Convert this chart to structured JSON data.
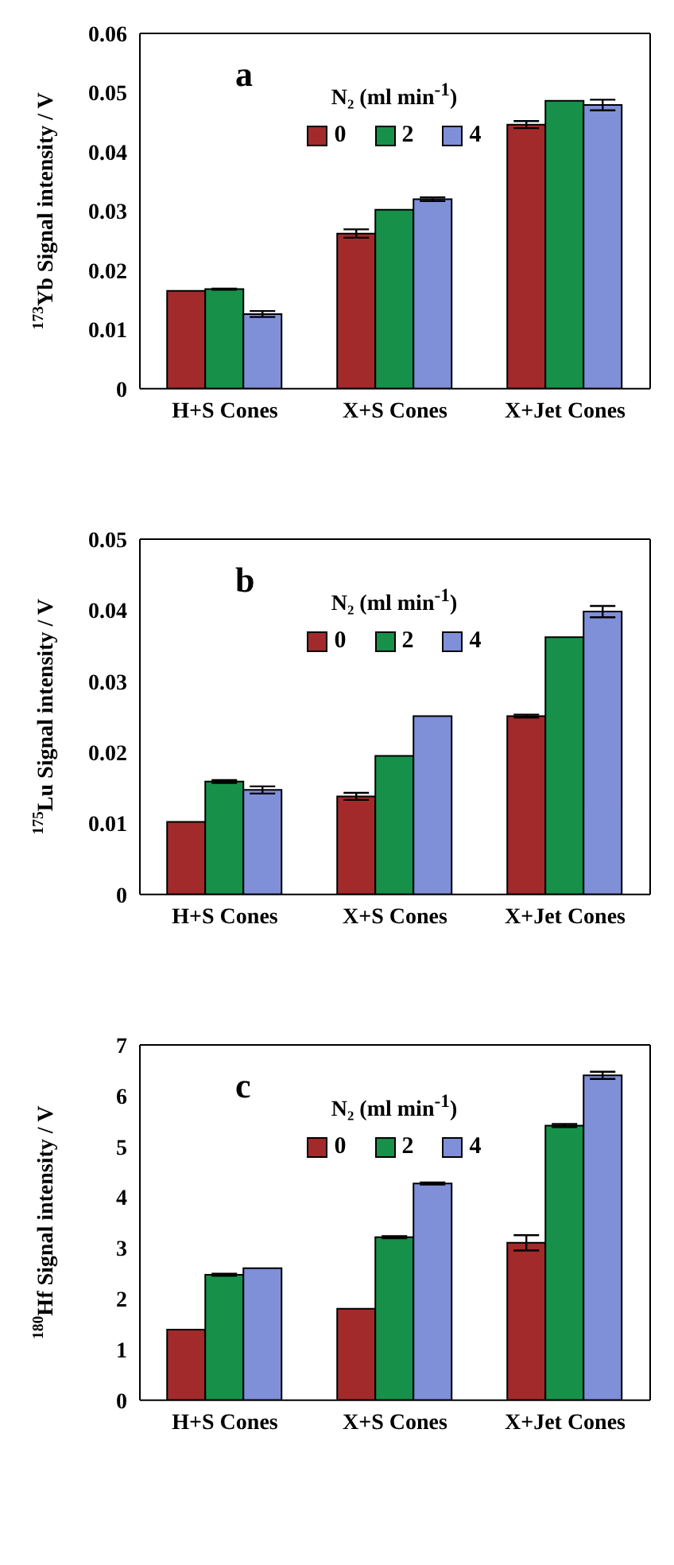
{
  "chart_data": [
    {
      "type": "bar",
      "title": "a",
      "ylabel": "$^{173}$Yb Signal intensity / V",
      "legend_title": "N₂ (ml min$^{-1}$)",
      "legend": "top",
      "categories": [
        "H+S Cones",
        "X+S Cones",
        "X+Jet Cones"
      ],
      "ylim": [
        0,
        0.06
      ],
      "yticks": [
        0,
        0.01,
        0.02,
        0.03,
        0.04,
        0.05,
        0.06
      ],
      "series": [
        {
          "name": "0",
          "color": "#a32a2a",
          "values": [
            0.0165,
            0.0262,
            0.0446
          ],
          "errors": [
            null,
            0.0007,
            0.0006
          ]
        },
        {
          "name": "2",
          "color": "#17904a",
          "values": [
            0.0168,
            0.0302,
            0.0486
          ],
          "errors": [
            0.0001,
            null,
            null
          ]
        },
        {
          "name": "4",
          "color": "#7f8fd8",
          "values": [
            0.0126,
            0.032,
            0.0479
          ],
          "errors": [
            0.0005,
            0.0003,
            0.0009
          ]
        }
      ]
    },
    {
      "type": "bar",
      "title": "b",
      "ylabel": "$^{175}$Lu Signal intensity / V",
      "legend_title": "N₂ (ml min$^{-1}$)",
      "legend": "top",
      "categories": [
        "H+S Cones",
        "X+S Cones",
        "X+Jet Cones"
      ],
      "ylim": [
        0,
        0.05
      ],
      "yticks": [
        0,
        0.01,
        0.02,
        0.03,
        0.04,
        0.05
      ],
      "series": [
        {
          "name": "0",
          "color": "#a32a2a",
          "values": [
            0.0102,
            0.0138,
            0.0251
          ],
          "errors": [
            null,
            0.0005,
            0.0002
          ]
        },
        {
          "name": "2",
          "color": "#17904a",
          "values": [
            0.0159,
            0.0195,
            0.0362
          ],
          "errors": [
            0.0002,
            null,
            null
          ]
        },
        {
          "name": "4",
          "color": "#7f8fd8",
          "values": [
            0.0147,
            0.0251,
            0.0398
          ],
          "errors": [
            0.0005,
            null,
            0.0008
          ]
        }
      ]
    },
    {
      "type": "bar",
      "title": "c",
      "ylabel": "$^{180}$Hf Signal intensity / V",
      "legend_title": "N₂ (ml min$^{-1}$)",
      "legend": "top",
      "categories": [
        "H+S Cones",
        "X+S Cones",
        "X+Jet Cones"
      ],
      "ylim": [
        0,
        7
      ],
      "yticks": [
        0,
        1,
        2,
        3,
        4,
        5,
        6,
        7
      ],
      "series": [
        {
          "name": "0",
          "color": "#a32a2a",
          "values": [
            1.39,
            1.8,
            3.1
          ],
          "errors": [
            null,
            null,
            0.15
          ]
        },
        {
          "name": "2",
          "color": "#17904a",
          "values": [
            2.47,
            3.21,
            5.41
          ],
          "errors": [
            0.02,
            0.02,
            0.03
          ]
        },
        {
          "name": "4",
          "color": "#7f8fd8",
          "values": [
            2.6,
            4.27,
            6.4
          ],
          "errors": [
            null,
            0.02,
            0.07
          ]
        }
      ]
    }
  ]
}
